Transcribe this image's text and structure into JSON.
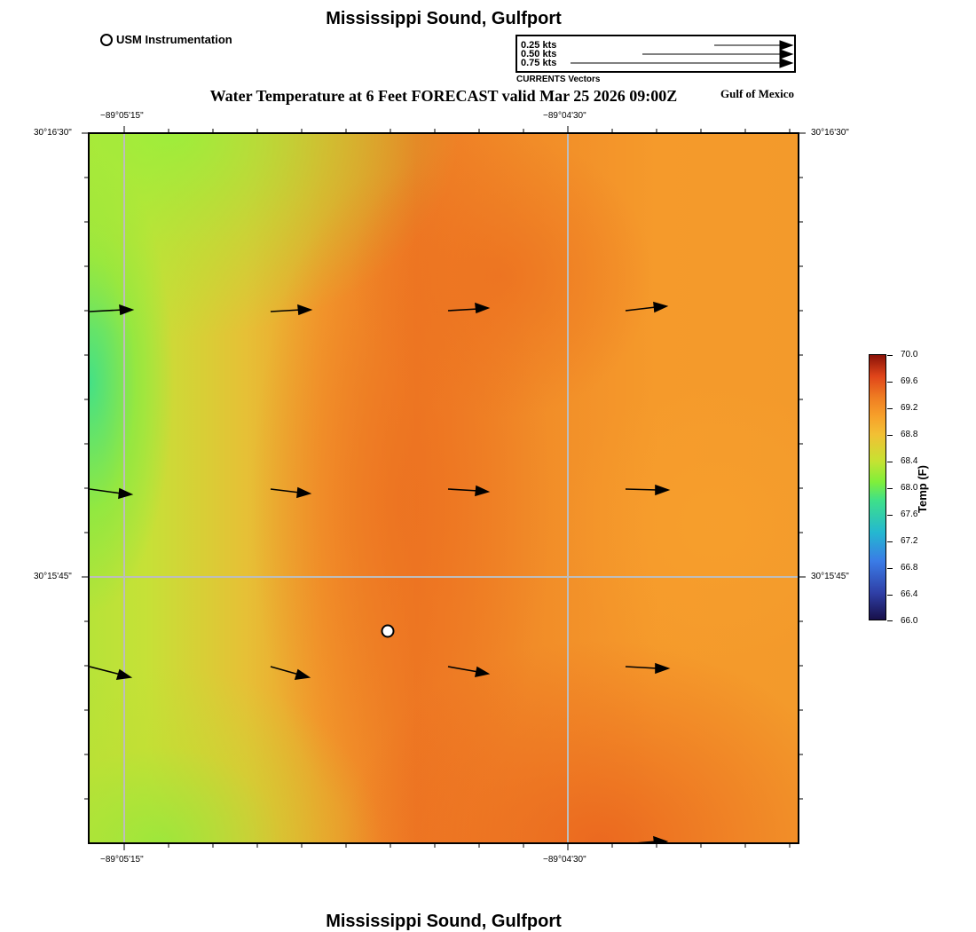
{
  "title": "Mississippi Sound, Gulfport",
  "footer_title": "Mississippi Sound, Gulfport",
  "usm_legend": "USM Instrumentation",
  "vector_legend": {
    "labels": [
      "0.25 kts",
      "0.50 kts",
      "0.75 kts"
    ],
    "caption": "CURRENTS Vectors"
  },
  "subtitle": "Water Temperature at 6 Feet FORECAST valid Mar 25 2026 09:00Z",
  "gulf_label": "Gulf of Mexico",
  "axes": {
    "top_lon_labels": [
      "−89°05'15\"",
      "−89°04'30\""
    ],
    "bottom_lon_labels": [
      "−89°05'15\"",
      "−89°04'30\""
    ],
    "left_lat_labels": [
      "30°16'30\"",
      "30°15'45\""
    ],
    "right_lat_labels": [
      "30°16'30\"",
      "30°15'45\""
    ]
  },
  "colorbar": {
    "title": "Temp (F)",
    "min": 66.0,
    "max": 70.0,
    "ticks": [
      "70.0",
      "69.6",
      "69.2",
      "68.8",
      "68.4",
      "68.0",
      "67.6",
      "67.2",
      "66.8",
      "66.4",
      "66.0"
    ]
  },
  "colors": {
    "cool": "#3ee08a",
    "warm": "#ef7d22",
    "mid": "#f7a02a",
    "grid": "#b8b8b8"
  }
}
